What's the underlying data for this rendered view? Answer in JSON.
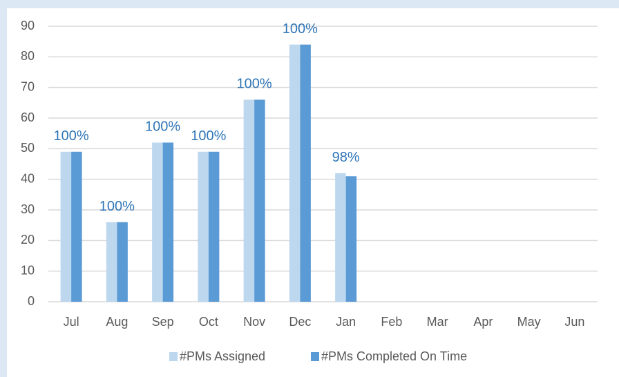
{
  "chart_data": {
    "type": "bar",
    "categories": [
      "Jul",
      "Aug",
      "Sep",
      "Oct",
      "Nov",
      "Dec",
      "Jan",
      "Feb",
      "Mar",
      "Apr",
      "May",
      "Jun"
    ],
    "series": [
      {
        "name": "#PMs Assigned",
        "color": "#bdd7ee",
        "values": [
          49,
          26,
          52,
          49,
          66,
          84,
          42,
          null,
          null,
          null,
          null,
          null
        ]
      },
      {
        "name": "#PMs Completed On Time",
        "color": "#5b9bd5",
        "values": [
          49,
          26,
          52,
          49,
          66,
          84,
          41,
          null,
          null,
          null,
          null,
          null
        ]
      }
    ],
    "annotations": [
      "100%",
      "100%",
      "100%",
      "100%",
      "100%",
      "100%",
      "98%"
    ],
    "ylim": [
      0,
      90
    ],
    "yticks": [
      0,
      10,
      20,
      30,
      40,
      50,
      60,
      70,
      80,
      90
    ],
    "grid": true,
    "legend": "bottom"
  }
}
